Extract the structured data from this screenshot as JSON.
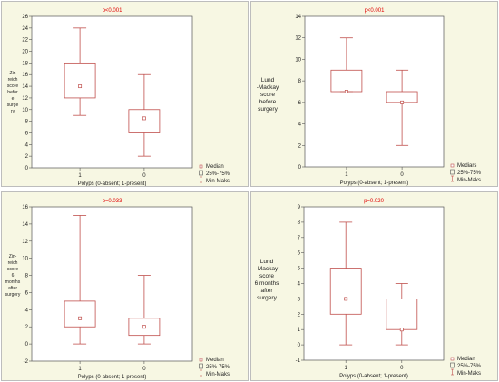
{
  "legend_labels": [
    "Median",
    "25%-75%",
    "Min-Maks"
  ],
  "chart_data": [
    {
      "type": "box",
      "title": "p<0.001",
      "ylabel": [
        "Zin",
        "reich",
        "score",
        "befor",
        "e",
        "surge",
        "ry"
      ],
      "xlabel": "Polyps (0-absent; 1-present)",
      "categories": [
        "1",
        "0"
      ],
      "ylim": [
        0,
        26
      ],
      "yticks": [
        0,
        2,
        4,
        6,
        8,
        10,
        12,
        14,
        16,
        18,
        20,
        22,
        24,
        26
      ],
      "boxes": [
        {
          "category": "1",
          "min": 9,
          "q1": 12,
          "median": 14,
          "q3": 18,
          "max": 24
        },
        {
          "category": "0",
          "min": 2,
          "q1": 6,
          "median": 8.5,
          "q3": 10,
          "max": 16
        }
      ],
      "legend": [
        "Median",
        "25%-75%",
        "Min-Maks"
      ]
    },
    {
      "type": "box",
      "title": "p<0.001",
      "ylabel": [
        "Lund",
        "-Mackay",
        "score",
        "before",
        "surgery"
      ],
      "xlabel": "Polyps (0-absent; 1-present)",
      "categories": [
        "1",
        "0"
      ],
      "ylim": [
        0,
        14
      ],
      "yticks": [
        0,
        2,
        4,
        6,
        8,
        10,
        12,
        14
      ],
      "boxes": [
        {
          "category": "1",
          "min": 7,
          "q1": 7,
          "median": 7,
          "q3": 9,
          "max": 12
        },
        {
          "category": "0",
          "min": 2,
          "q1": 6,
          "median": 6,
          "q3": 7,
          "max": 9
        }
      ],
      "legend": [
        "Mediars",
        "25%-75%",
        "Min-Maks"
      ]
    },
    {
      "type": "box",
      "title": "p=0.033",
      "ylabel": [
        "Zin-",
        "reich",
        "score",
        "6",
        "months",
        "after",
        "surgery"
      ],
      "xlabel": "Polyps (0-absent; 1-present)",
      "categories": [
        "1",
        "0"
      ],
      "ylim": [
        -2,
        16
      ],
      "yticks": [
        -2,
        0,
        2,
        4,
        6,
        8,
        10,
        12,
        14,
        16
      ],
      "boxes": [
        {
          "category": "1",
          "min": 0,
          "q1": 2,
          "median": 3,
          "q3": 5,
          "max": 15
        },
        {
          "category": "0",
          "min": 0,
          "q1": 1,
          "median": 2,
          "q3": 3,
          "max": 8
        }
      ],
      "legend": [
        "Median",
        "25%-75%",
        "Min-Maks"
      ]
    },
    {
      "type": "box",
      "title": "p=0.020",
      "ylabel": [
        "Lund",
        "-Mackay",
        "score",
        "6 months",
        "after",
        "surgery"
      ],
      "xlabel": "Polyps (0-absent; 1-present)",
      "categories": [
        "1",
        "0"
      ],
      "ylim": [
        -1,
        9
      ],
      "yticks": [
        -1,
        0,
        1,
        2,
        3,
        4,
        5,
        6,
        7,
        8,
        9
      ],
      "boxes": [
        {
          "category": "1",
          "min": 0,
          "q1": 2,
          "median": 3,
          "q3": 5,
          "max": 8
        },
        {
          "category": "0",
          "min": 0,
          "q1": 1,
          "median": 1,
          "q3": 3,
          "max": 4
        }
      ],
      "legend": [
        "Median",
        "25%-75%",
        "Min-Maks"
      ]
    }
  ]
}
